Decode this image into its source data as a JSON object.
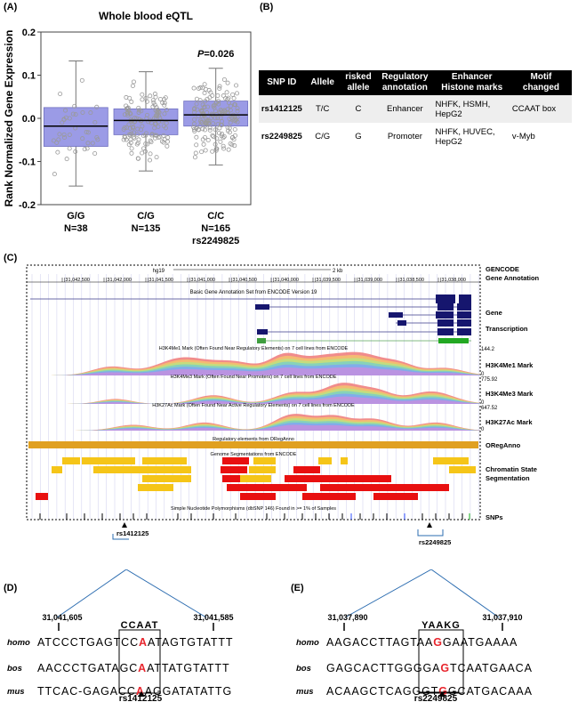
{
  "panel_labels": {
    "a": "(A)",
    "b": "(B)",
    "c": "(C)",
    "d": "(D)",
    "e": "(E)"
  },
  "chart_data": {
    "type": "boxplot",
    "title": "Whole blood eQTL",
    "ylabel": "Rank Normalized Gene Expression",
    "ylim": [
      -0.2,
      0.2
    ],
    "yticks": [
      "0.2",
      "0.1",
      "0.0",
      "-0.1",
      "-0.2"
    ],
    "ytick_values": [
      0.2,
      0.1,
      0.0,
      -0.1,
      -0.2
    ],
    "annotation": "P=0.026",
    "xlabel": "rs2249825",
    "colors": {
      "box": "#9b9be6",
      "points": "#9a9a9a"
    },
    "groups": [
      {
        "genotype": "G/G",
        "n": "N=38",
        "median": -0.018,
        "q1": -0.065,
        "q3": 0.025,
        "whisker_low": -0.157,
        "whisker_high": 0.133
      },
      {
        "genotype": "C/G",
        "n": "N=135",
        "median": -0.005,
        "q1": -0.038,
        "q3": 0.022,
        "whisker_low": -0.122,
        "whisker_high": 0.108
      },
      {
        "genotype": "C/C",
        "n": "N=165",
        "median": 0.008,
        "q1": -0.018,
        "q3": 0.04,
        "whisker_low": -0.108,
        "whisker_high": 0.116
      }
    ]
  },
  "table": {
    "headers": [
      "SNP ID",
      "Allele",
      "risked allele",
      "Regulatory annotation",
      "Enhancer Histone marks",
      "Motif changed"
    ],
    "rows": [
      [
        "rs1412125",
        "T/C",
        "C",
        "Enhancer",
        "NHFK, HSMH, HepG2",
        "CCAAT box"
      ],
      [
        "rs2249825",
        "C/G",
        "G",
        "Promoter",
        "NHFK, HUVEC, HepG2",
        "v-Myb"
      ]
    ]
  },
  "browser": {
    "scale_label": "hg19",
    "scale_size": "2 kb",
    "coords": [
      "31,042,500",
      "31,042,000",
      "31,041,500",
      "31,041,000",
      "31,040,500",
      "31,040,000",
      "31,039,500",
      "31,039,000",
      "31,038,500",
      "31,038,000"
    ],
    "gencode_title": "Basic Gene Annotation Set from ENCODE Version 19",
    "h3k4me1_title": "H3K4Me1 Mark (Often Found Near Regulatory Elements) on 7 cell lines from ENCODE",
    "h3k4me3_title": "H3K4Me3 Mark (Often Found Near Promoters) on 7 cell lines from ENCODE",
    "h3k27ac_title": "H3K27Ac Mark (Often Found Near Active Regulatory Elements) on 7 cell lines from ENCODE",
    "oreganno_title": "Regulatory elements from ORegAnno",
    "segmentation_title": "Genome Segmentations from ENCODE",
    "snp_title": "Simple Nucleotide Polymorphisms (dbSNP 146) Found in >= 1% of Samples",
    "h3k4me1_max": "144.2",
    "h3k4me1_min": "0",
    "h3k4me3_max": "775.92",
    "h3k4me3_min": "0",
    "h3k27ac_max": "647.52",
    "h3k27ac_min": "0",
    "track_labels": {
      "gencode": "GENCODE Gene Annotation",
      "gene": "Gene",
      "transcription": "Transcription",
      "h3k4me1": "H3K4Me1 Mark",
      "h3k4me3": "H3K4Me3 Mark",
      "h3k27ac": "H3K27Ac Mark",
      "oreganno": "ORegAnno",
      "chromatin": "Chromatin State Segmentation",
      "snps": "SNPs"
    },
    "snp_markers": [
      "rs1412125",
      "rs2249825"
    ]
  },
  "panel_d": {
    "coord_left": "31,041,605",
    "coord_right": "31,041,585",
    "motif": "CCAAT",
    "snp": "rs1412125",
    "species": [
      "homo",
      "bos",
      "mus"
    ],
    "sequences": [
      {
        "before": "ATCCCTGAGTCC",
        "allele": "A",
        "after": "ATAGTGTATTT"
      },
      {
        "before": "AACCCTGATAGC",
        "allele": "A",
        "after": "ATTATGTATTT"
      },
      {
        "before": "TTCAC-GAGACC",
        "allele": "A",
        "after": "AGGATATATTG"
      }
    ]
  },
  "panel_e": {
    "coord_left": "31,037,890",
    "coord_right": "31,037,910",
    "motif": "YAAKG",
    "snp": "rs2249825",
    "species": [
      "homo",
      "bos",
      "mus"
    ],
    "sequences": [
      {
        "before": "AAGACCTTAGTAA",
        "allele": "G",
        "after": "GAATGAAAA"
      },
      {
        "before": "GAGCACTTGGGGA",
        "allele": "G",
        "after": "TCAATGAACA"
      },
      {
        "before": "ACAAGCTCAGGGT",
        "allele": "G",
        "after": "GCATGACAAA"
      }
    ]
  }
}
